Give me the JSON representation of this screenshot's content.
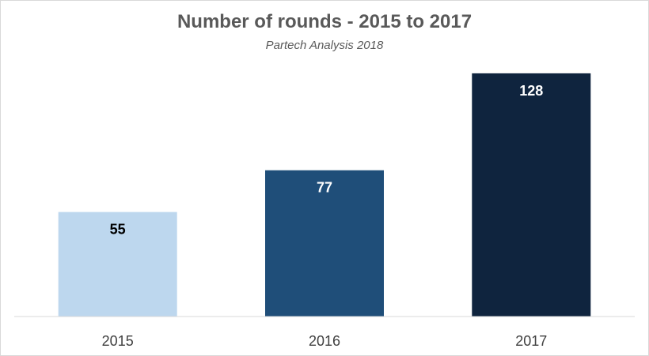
{
  "chart_data": {
    "type": "bar",
    "title": "Number of rounds - 2015 to 2017",
    "subtitle": "Partech Analysis 2018",
    "categories": [
      "2015",
      "2016",
      "2017"
    ],
    "values": [
      55,
      77,
      128
    ],
    "xlabel": "",
    "ylabel": "",
    "ylim": [
      0,
      150
    ],
    "grid": false,
    "legend": "none",
    "bar_colors": [
      "#bdd7ee",
      "#1f4e79",
      "#0f243e"
    ],
    "label_colors": [
      "#000000",
      "#ffffff",
      "#ffffff"
    ],
    "axis_color": "#d9d9d9"
  }
}
